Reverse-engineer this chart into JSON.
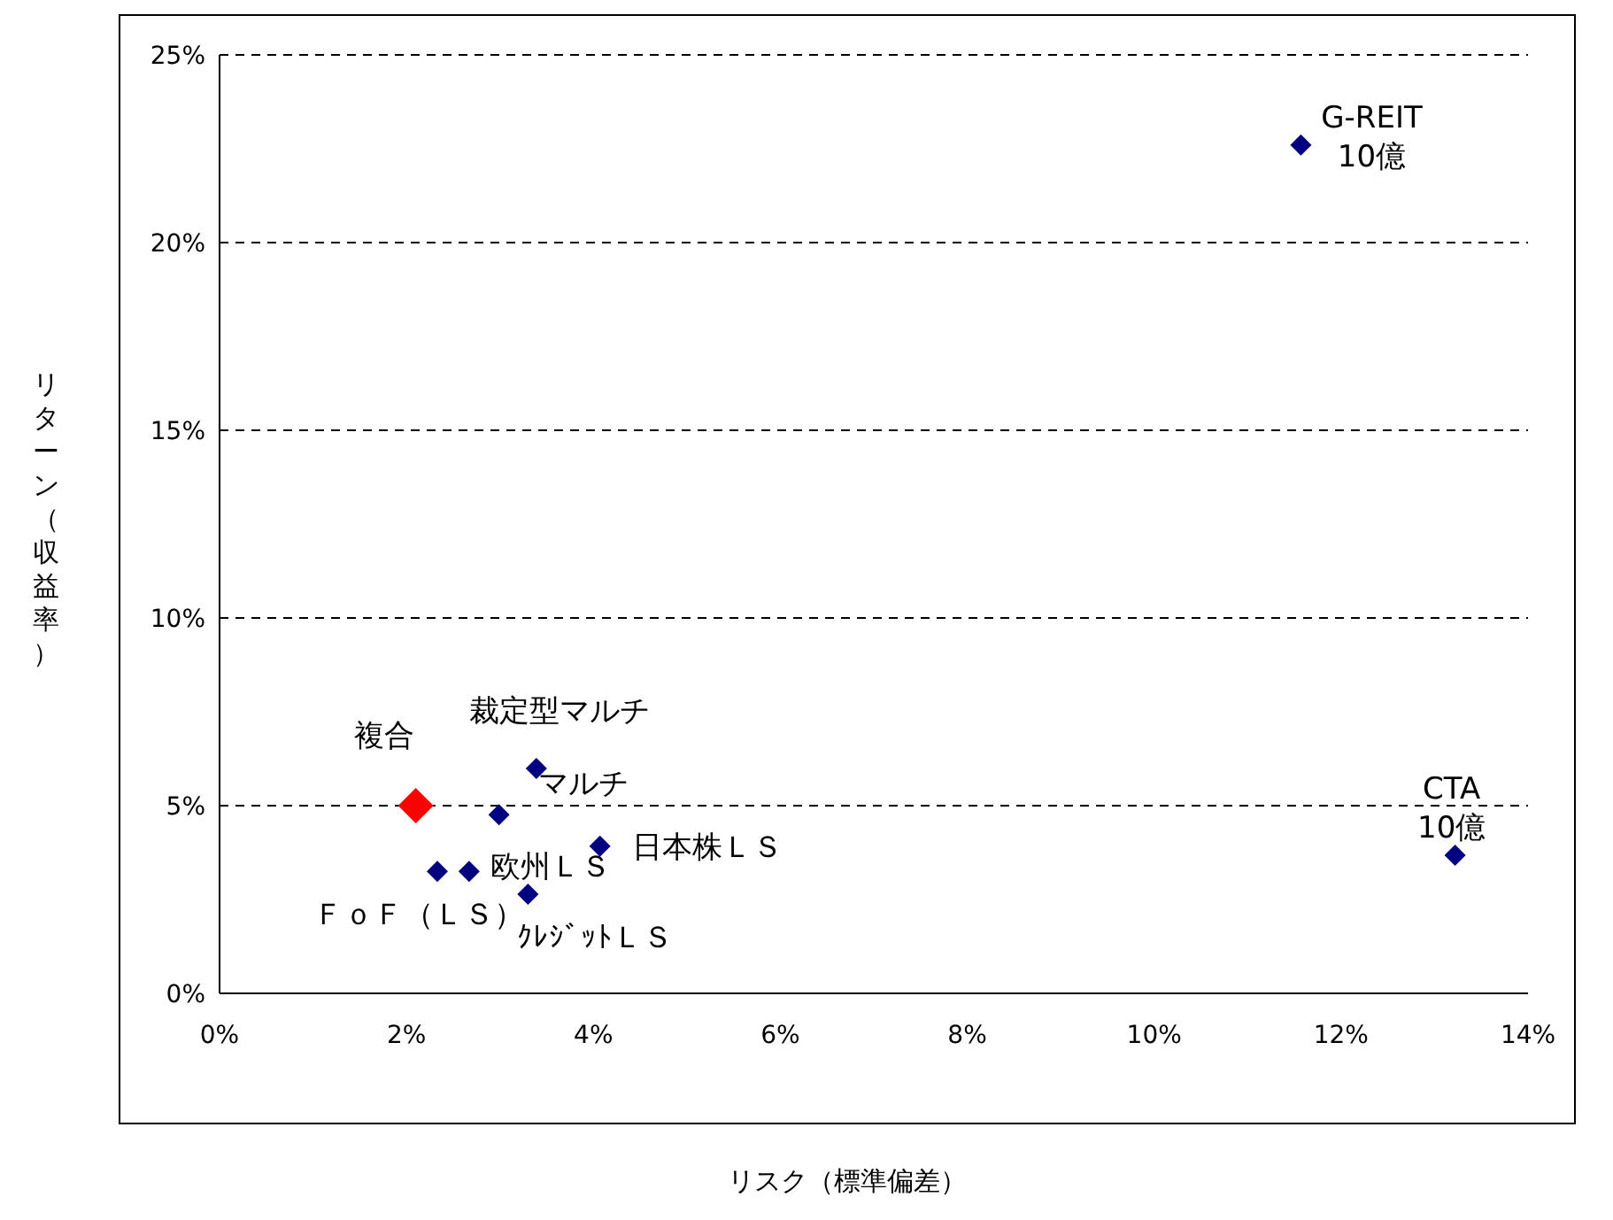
{
  "chart_data": {
    "type": "scatter",
    "xlabel": "リスク（標準偏差）",
    "ylabel": "リターン（収益率）",
    "xlim": [
      0,
      14
    ],
    "ylim": [
      0,
      25
    ],
    "xticks": [
      {
        "value": 0,
        "label": "0%"
      },
      {
        "value": 2,
        "label": "2%"
      },
      {
        "value": 4,
        "label": "4%"
      },
      {
        "value": 6,
        "label": "6%"
      },
      {
        "value": 8,
        "label": "8%"
      },
      {
        "value": 10,
        "label": "10%"
      },
      {
        "value": 12,
        "label": "12%"
      },
      {
        "value": 14,
        "label": "14%"
      }
    ],
    "yticks": [
      {
        "value": 0,
        "label": "0%"
      },
      {
        "value": 5,
        "label": "5%"
      },
      {
        "value": 10,
        "label": "10%"
      },
      {
        "value": 15,
        "label": "15%"
      },
      {
        "value": 20,
        "label": "20%"
      },
      {
        "value": 25,
        "label": "25%"
      }
    ],
    "grid": "y",
    "marker": "diamond",
    "legend": false,
    "series": [
      {
        "color": "#000080",
        "x": [
          2.33,
          2.67,
          2.99,
          3.39,
          3.3,
          4.07,
          11.57,
          13.22
        ],
        "values": [
          3.25,
          3.25,
          4.76,
          5.99,
          2.64,
          3.92,
          22.6,
          3.68
        ]
      },
      {
        "color": "#ff0000",
        "x": [
          2.1
        ],
        "values": [
          5.0
        ]
      }
    ],
    "annotations": [
      {
        "text": "ＦｏＦ（ＬＳ）",
        "x": 2.33,
        "y": 3.25
      },
      {
        "text": "欧州ＬＳ",
        "x": 2.67,
        "y": 3.25
      },
      {
        "text": "マルチ",
        "x": 2.99,
        "y": 4.76
      },
      {
        "text": "裁定型マルチ",
        "x": 3.39,
        "y": 5.99
      },
      {
        "text": "ｸﾚｼﾞｯﾄＬＳ",
        "x": 3.3,
        "y": 2.64
      },
      {
        "text": "日本株ＬＳ",
        "x": 4.07,
        "y": 3.92
      },
      {
        "text": "G-REIT\n10億",
        "x": 11.57,
        "y": 22.6
      },
      {
        "text": "CTA\n10億",
        "x": 13.22,
        "y": 3.68
      },
      {
        "text": "複合",
        "x": 2.1,
        "y": 5.0
      }
    ]
  }
}
